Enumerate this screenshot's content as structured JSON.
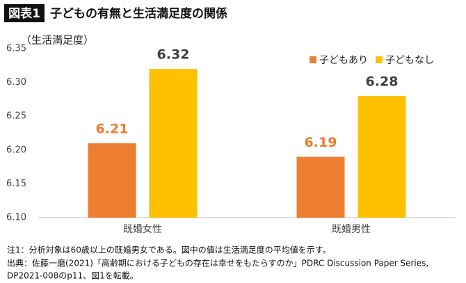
{
  "chart_data": {
    "type": "bar",
    "badge": "図表1",
    "title": "子どもの有無と生活満足度の関係",
    "y_label": "（生活満足度）",
    "categories": [
      "既婚女性",
      "既婚男性"
    ],
    "series": [
      {
        "name": "子どもあり",
        "color": "#ed7d31",
        "label_color": "#ed7d31",
        "values": [
          6.21,
          6.19
        ]
      },
      {
        "name": "子どもなし",
        "color": "#ffc000",
        "label_color": "#404040",
        "values": [
          6.32,
          6.28
        ]
      }
    ],
    "ylim": [
      6.1,
      6.35
    ],
    "yticks": [
      {
        "value": 6.1,
        "label": "6.10"
      },
      6.15,
      {
        "value": 6.2,
        "label": "6.20"
      },
      6.25,
      {
        "value": 6.3,
        "label": "6.30"
      },
      6.35
    ],
    "grid": false,
    "legend": "top-right",
    "notes": [
      "注1：分析対象は60歳以上の既婚男女である。図中の値は生活満足度の平均値を示す。",
      "出典：佐藤一磨(2021)「高齢期における子どもの存在は幸せをもたらすのか」PDRC Discussion Paper Series,",
      "DP2021-008のp11、図1を転載。"
    ]
  }
}
